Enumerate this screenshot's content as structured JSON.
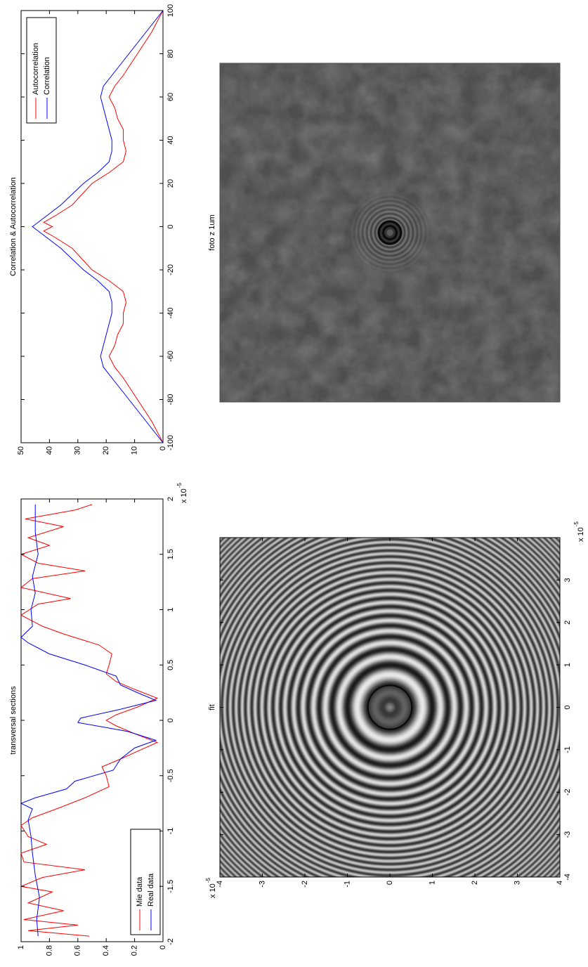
{
  "chart_data": [
    {
      "type": "line",
      "title": "transversal sections",
      "xlim": [
        -2,
        2
      ],
      "xticks": [
        -2,
        -1.5,
        -1,
        -0.5,
        0,
        0.5,
        1,
        1.5,
        2
      ],
      "ylim": [
        0,
        1
      ],
      "yticks": [
        0,
        0.2,
        0.4,
        0.6,
        0.8,
        1
      ],
      "x_scale_label": {
        "base": "x 10",
        "exponent": "-5"
      },
      "legend": "lower left",
      "series": [
        {
          "name": "Mie data",
          "color": "#ff0000",
          "x": [
            -1.95,
            -1.9,
            -1.85,
            -1.8,
            -1.72,
            -1.65,
            -1.55,
            -1.5,
            -1.42,
            -1.35,
            -1.28,
            -1.2,
            -1.12,
            -1.05,
            -0.95,
            -0.88,
            -0.8,
            -0.7,
            -0.6,
            -0.5,
            -0.42,
            -0.35,
            -0.28,
            -0.2,
            -0.12,
            -0.05,
            0,
            0.05,
            0.12,
            0.2,
            0.28,
            0.35,
            0.42,
            0.5,
            0.6,
            0.68,
            0.78,
            0.85,
            0.95,
            1.05,
            1.1,
            1.2,
            1.28,
            1.35,
            1.42,
            1.5,
            1.58,
            1.65,
            1.75,
            1.82,
            1.9,
            1.95
          ],
          "values": [
            0.52,
            0.95,
            0.6,
            0.98,
            0.7,
            0.95,
            0.78,
            1.0,
            0.85,
            0.55,
            0.98,
            1.0,
            0.82,
            0.95,
            1.0,
            0.92,
            0.75,
            0.55,
            0.38,
            0.4,
            0.43,
            0.3,
            0.18,
            0.04,
            0.2,
            0.33,
            0.4,
            0.33,
            0.18,
            0.04,
            0.2,
            0.33,
            0.4,
            0.38,
            0.36,
            0.45,
            0.7,
            0.85,
            1.0,
            0.88,
            0.65,
            1.0,
            0.92,
            0.55,
            0.88,
            1.0,
            0.8,
            0.95,
            0.7,
            0.97,
            0.62,
            0.5
          ]
        },
        {
          "name": "Real data",
          "color": "#0000ff",
          "x": [
            -1.95,
            -1.8,
            -1.6,
            -1.4,
            -1.2,
            -1.05,
            -0.9,
            -0.8,
            -0.75,
            -0.7,
            -0.62,
            -0.55,
            -0.45,
            -0.35,
            -0.25,
            -0.18,
            -0.1,
            -0.02,
            0.02,
            0.1,
            0.18,
            0.25,
            0.32,
            0.4,
            0.5,
            0.6,
            0.7,
            0.75,
            0.85,
            1.0,
            1.15,
            1.3,
            1.5,
            1.7,
            1.95
          ],
          "values": [
            0.88,
            0.89,
            0.87,
            0.9,
            0.92,
            0.93,
            0.95,
            0.92,
            1.0,
            0.9,
            0.68,
            0.62,
            0.35,
            0.3,
            0.2,
            0.05,
            0.25,
            0.6,
            0.58,
            0.3,
            0.05,
            0.18,
            0.3,
            0.33,
            0.55,
            0.8,
            0.95,
            1.0,
            0.92,
            0.93,
            0.9,
            0.92,
            0.88,
            0.9,
            0.9
          ]
        }
      ]
    },
    {
      "type": "line",
      "title": "Correlation & Autocorrelation",
      "x": [
        -100,
        -90,
        -80,
        -70,
        -65,
        -60,
        -55,
        -50,
        -45,
        -40,
        -35,
        -30,
        -25,
        -20,
        -10,
        -5,
        -2,
        0,
        2,
        5,
        10,
        20,
        25,
        30,
        35,
        40,
        45,
        50,
        55,
        60,
        65,
        70,
        80,
        90,
        100
      ],
      "xlim": [
        -100,
        100
      ],
      "xticks": [
        -100,
        -80,
        -60,
        -40,
        -20,
        0,
        20,
        40,
        60,
        80,
        100
      ],
      "ylim": [
        0,
        50
      ],
      "yticks": [
        0,
        10,
        20,
        30,
        40,
        50
      ],
      "legend": "upper right",
      "series": [
        {
          "name": "Autocorrelation",
          "color": "#ff0000",
          "values": [
            0,
            4,
            9,
            14,
            17,
            19,
            17,
            16,
            14,
            14,
            13,
            14,
            19,
            25,
            32,
            38,
            42,
            39,
            42,
            38,
            32,
            25,
            19,
            14,
            13,
            14,
            14,
            16,
            17,
            19,
            17,
            14,
            9,
            4,
            0
          ]
        },
        {
          "name": "Correlation",
          "color": "#0000ff",
          "values": [
            0,
            6,
            12,
            18,
            21,
            22,
            21,
            20,
            19,
            18,
            18,
            19,
            23,
            28,
            36,
            41,
            44,
            46,
            44,
            41,
            36,
            28,
            23,
            19,
            18,
            18,
            19,
            20,
            21,
            22,
            21,
            18,
            12,
            6,
            0
          ]
        }
      ]
    },
    {
      "type": "image",
      "title": "fit",
      "style": "fit",
      "xlim": [
        -4,
        4
      ],
      "xticks": [
        -4,
        -3,
        -2,
        -1,
        0,
        1,
        2,
        3
      ],
      "ylim": [
        -4,
        4
      ],
      "yticks": [
        -4,
        -3,
        -2,
        -1,
        0,
        1,
        2,
        3,
        4
      ],
      "ydir": "reverse",
      "x_scale_label": {
        "base": "x 10",
        "exponent": "-5"
      },
      "y_scale_label": {
        "base": "x 10",
        "exponent": "-5"
      }
    },
    {
      "type": "image",
      "title": "foto z 1um",
      "style": "photo"
    }
  ]
}
